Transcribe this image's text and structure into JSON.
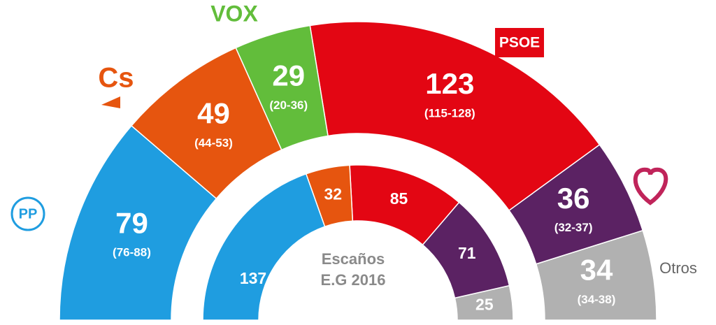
{
  "chart_data": {
    "type": "parliament",
    "center_label": [
      "Escaños",
      "E.G 2016"
    ],
    "categories": [
      "PP",
      "Cs",
      "VOX",
      "PSOE",
      null,
      "Otros"
    ],
    "colors": [
      "#1f9de0",
      "#e6550f",
      "#62bd3b",
      "#e30613",
      "#5b2263",
      "#b1b1b1"
    ],
    "rings": [
      {
        "values": [
          79,
          49,
          29,
          123,
          36,
          34
        ],
        "ranges": [
          "(76-88)",
          "(44-53)",
          "(20-36)",
          "(115-128)",
          "(32-37)",
          "(34-38)"
        ]
      },
      {
        "values": [
          137,
          32,
          null,
          85,
          71,
          25
        ]
      }
    ]
  }
}
